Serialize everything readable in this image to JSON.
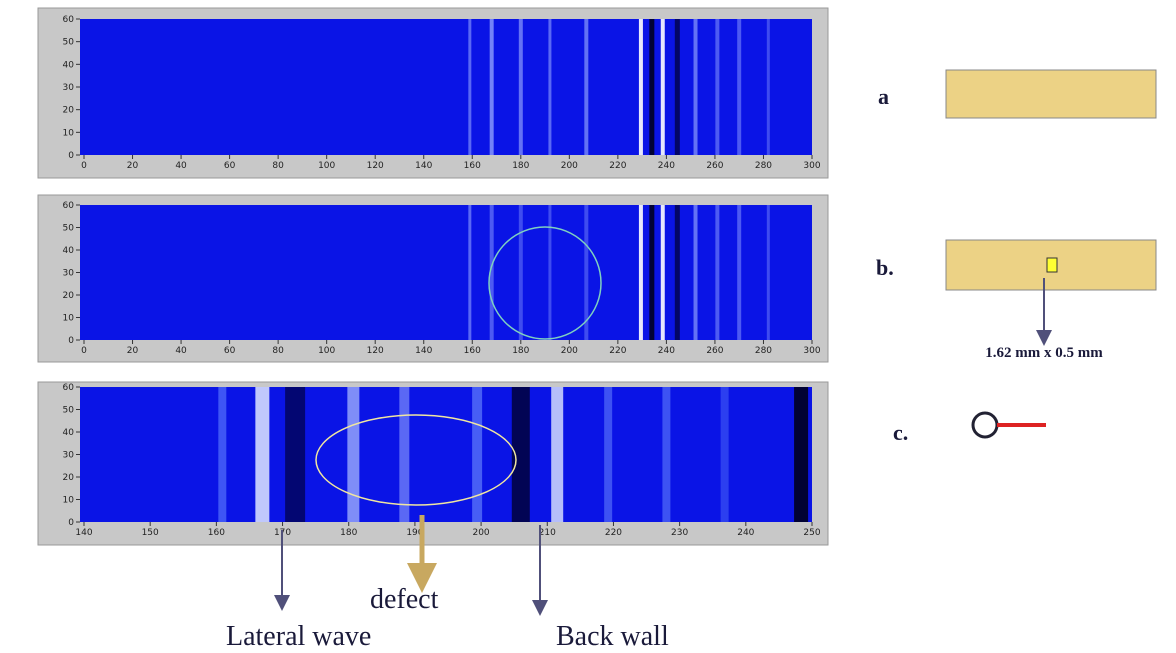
{
  "panels": [
    {
      "xlim": [
        0,
        300
      ],
      "ylim": [
        0,
        60
      ],
      "xticks": [
        0,
        20,
        40,
        60,
        80,
        100,
        120,
        140,
        160,
        180,
        200,
        220,
        240,
        260,
        280,
        300
      ],
      "yticks": [
        0,
        10,
        20,
        30,
        40,
        50,
        60
      ]
    },
    {
      "xlim": [
        0,
        300
      ],
      "ylim": [
        0,
        60
      ],
      "xticks": [
        0,
        20,
        40,
        60,
        80,
        100,
        120,
        140,
        160,
        180,
        200,
        220,
        240,
        260,
        280,
        300
      ],
      "yticks": [
        0,
        10,
        20,
        30,
        40,
        50,
        60
      ]
    },
    {
      "xlim": [
        140,
        250
      ],
      "ylim": [
        0,
        60
      ],
      "xticks": [
        140,
        150,
        160,
        170,
        180,
        190,
        200,
        210,
        220,
        230,
        240,
        250
      ],
      "yticks": [
        0,
        10,
        20,
        30,
        40,
        50,
        60
      ]
    }
  ],
  "side_labels": {
    "a": "a",
    "b": "b.",
    "c": "c.",
    "dimension": "1.62 mm x 0.5 mm"
  },
  "annotations": {
    "lateral_wave": "Lateral wave",
    "defect": "defect",
    "back_wall": "Back wall"
  }
}
